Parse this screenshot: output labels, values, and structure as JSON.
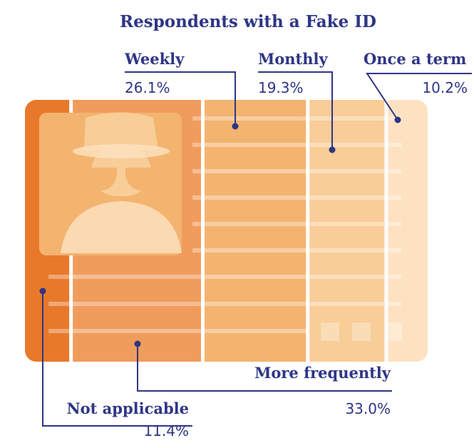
{
  "chart_data": {
    "type": "id-card",
    "title": "Respondents with a Fake ID",
    "categories": [
      "Not applicable",
      "More frequently",
      "Weekly",
      "Monthly",
      "Once a term"
    ],
    "values": [
      11.4,
      33.0,
      26.1,
      19.3,
      10.2
    ],
    "value_labels": [
      "11.4%",
      "33.0%",
      "26.1%",
      "19.3%",
      "10.2%"
    ],
    "colors": [
      "#e8792a",
      "#f09c5c",
      "#f3b470",
      "#f8cd98",
      "#fde2c2"
    ]
  }
}
